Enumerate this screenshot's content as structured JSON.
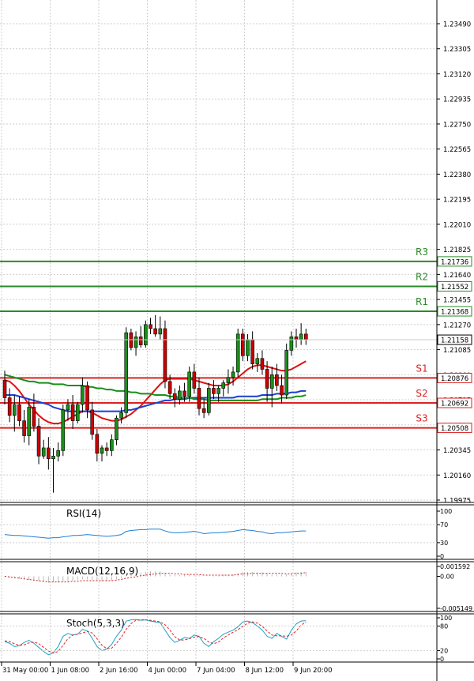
{
  "chart_data": [
    {
      "type": "candlestick",
      "panel": "price",
      "y_ticks": [
        "1.23490",
        "1.23305",
        "1.23120",
        "1.22935",
        "1.22750",
        "1.22565",
        "1.22380",
        "1.22195",
        "1.22010",
        "1.21825",
        "1.21640",
        "1.21455",
        "1.21270",
        "1.21085",
        "1.20900",
        "1.20715",
        "1.20530",
        "1.20345",
        "1.20160",
        "1.19975"
      ],
      "ylim": [
        1.19975,
        1.2349
      ],
      "x_ticks": [
        "31 May 00:00",
        "1 Jun 08:00",
        "2 Jun 16:00",
        "4 Jun 00:00",
        "7 Jun 04:00",
        "8 Jun 12:00",
        "9 Jun 20:00"
      ],
      "x_tick_index": [
        0,
        10,
        20,
        30,
        40,
        50,
        60
      ],
      "bull_color": "#1a8f1a",
      "bear_color": "#cc0000",
      "candles": [
        {
          "o": 1.2086,
          "h": 1.2093,
          "l": 1.2068,
          "c": 1.2073
        },
        {
          "o": 1.2073,
          "h": 1.208,
          "l": 1.2055,
          "c": 1.206
        },
        {
          "o": 1.206,
          "h": 1.2075,
          "l": 1.2048,
          "c": 1.2068
        },
        {
          "o": 1.2068,
          "h": 1.2074,
          "l": 1.2052,
          "c": 1.2056
        },
        {
          "o": 1.2056,
          "h": 1.2064,
          "l": 1.204,
          "c": 1.2045
        },
        {
          "o": 1.2045,
          "h": 1.2072,
          "l": 1.2038,
          "c": 1.2066
        },
        {
          "o": 1.2066,
          "h": 1.2076,
          "l": 1.2048,
          "c": 1.2052
        },
        {
          "o": 1.2052,
          "h": 1.2058,
          "l": 1.2024,
          "c": 1.203
        },
        {
          "o": 1.203,
          "h": 1.2042,
          "l": 1.2028,
          "c": 1.2036
        },
        {
          "o": 1.2036,
          "h": 1.2044,
          "l": 1.202,
          "c": 1.2028
        },
        {
          "o": 1.2028,
          "h": 1.2036,
          "l": 1.2003,
          "c": 1.203
        },
        {
          "o": 1.203,
          "h": 1.204,
          "l": 1.2026,
          "c": 1.2034
        },
        {
          "o": 1.2034,
          "h": 1.2068,
          "l": 1.203,
          "c": 1.2064
        },
        {
          "o": 1.2064,
          "h": 1.2072,
          "l": 1.2056,
          "c": 1.2068
        },
        {
          "o": 1.2068,
          "h": 1.2075,
          "l": 1.205,
          "c": 1.2056
        },
        {
          "o": 1.2056,
          "h": 1.207,
          "l": 1.2054,
          "c": 1.2068
        },
        {
          "o": 1.2068,
          "h": 1.2088,
          "l": 1.2062,
          "c": 1.2082
        },
        {
          "o": 1.2082,
          "h": 1.2085,
          "l": 1.2058,
          "c": 1.2064
        },
        {
          "o": 1.2064,
          "h": 1.207,
          "l": 1.2042,
          "c": 1.2046
        },
        {
          "o": 1.2046,
          "h": 1.205,
          "l": 1.2026,
          "c": 1.2032
        },
        {
          "o": 1.2032,
          "h": 1.2038,
          "l": 1.2026,
          "c": 1.2036
        },
        {
          "o": 1.2036,
          "h": 1.204,
          "l": 1.203,
          "c": 1.2034
        },
        {
          "o": 1.2034,
          "h": 1.2046,
          "l": 1.203,
          "c": 1.2042
        },
        {
          "o": 1.2042,
          "h": 1.206,
          "l": 1.2038,
          "c": 1.2058
        },
        {
          "o": 1.2058,
          "h": 1.2066,
          "l": 1.2054,
          "c": 1.2062
        },
        {
          "o": 1.2062,
          "h": 1.2125,
          "l": 1.2058,
          "c": 1.2121
        },
        {
          "o": 1.2121,
          "h": 1.2124,
          "l": 1.2108,
          "c": 1.211
        },
        {
          "o": 1.211,
          "h": 1.2122,
          "l": 1.2104,
          "c": 1.2118
        },
        {
          "o": 1.2118,
          "h": 1.2126,
          "l": 1.211,
          "c": 1.2112
        },
        {
          "o": 1.2112,
          "h": 1.213,
          "l": 1.211,
          "c": 1.2127
        },
        {
          "o": 1.2127,
          "h": 1.2132,
          "l": 1.212,
          "c": 1.2124
        },
        {
          "o": 1.2124,
          "h": 1.2134,
          "l": 1.2118,
          "c": 1.212
        },
        {
          "o": 1.212,
          "h": 1.2133,
          "l": 1.2116,
          "c": 1.2124
        },
        {
          "o": 1.2124,
          "h": 1.213,
          "l": 1.208,
          "c": 1.2085
        },
        {
          "o": 1.2085,
          "h": 1.209,
          "l": 1.2072,
          "c": 1.2076
        },
        {
          "o": 1.2076,
          "h": 1.208,
          "l": 1.2066,
          "c": 1.2072
        },
        {
          "o": 1.2072,
          "h": 1.2082,
          "l": 1.2068,
          "c": 1.2078
        },
        {
          "o": 1.2078,
          "h": 1.2084,
          "l": 1.207,
          "c": 1.2074
        },
        {
          "o": 1.2074,
          "h": 1.2096,
          "l": 1.207,
          "c": 1.2092
        },
        {
          "o": 1.2092,
          "h": 1.2098,
          "l": 1.2076,
          "c": 1.208
        },
        {
          "o": 1.208,
          "h": 1.2088,
          "l": 1.206,
          "c": 1.2065
        },
        {
          "o": 1.2065,
          "h": 1.2072,
          "l": 1.2058,
          "c": 1.2062
        },
        {
          "o": 1.2062,
          "h": 1.2084,
          "l": 1.206,
          "c": 1.208
        },
        {
          "o": 1.208,
          "h": 1.2086,
          "l": 1.2072,
          "c": 1.2076
        },
        {
          "o": 1.2076,
          "h": 1.2082,
          "l": 1.207,
          "c": 1.208
        },
        {
          "o": 1.208,
          "h": 1.2086,
          "l": 1.2074,
          "c": 1.2084
        },
        {
          "o": 1.2084,
          "h": 1.2094,
          "l": 1.2076,
          "c": 1.2088
        },
        {
          "o": 1.2088,
          "h": 1.2096,
          "l": 1.2082,
          "c": 1.2092
        },
        {
          "o": 1.2092,
          "h": 1.2124,
          "l": 1.2088,
          "c": 1.212
        },
        {
          "o": 1.212,
          "h": 1.2124,
          "l": 1.21,
          "c": 1.2104
        },
        {
          "o": 1.2104,
          "h": 1.212,
          "l": 1.21,
          "c": 1.2116
        },
        {
          "o": 1.2116,
          "h": 1.2122,
          "l": 1.2094,
          "c": 1.2098
        },
        {
          "o": 1.2098,
          "h": 1.2106,
          "l": 1.2092,
          "c": 1.2102
        },
        {
          "o": 1.2102,
          "h": 1.2108,
          "l": 1.209,
          "c": 1.2094
        },
        {
          "o": 1.2094,
          "h": 1.21,
          "l": 1.207,
          "c": 1.208
        },
        {
          "o": 1.208,
          "h": 1.2096,
          "l": 1.2066,
          "c": 1.209
        },
        {
          "o": 1.209,
          "h": 1.2098,
          "l": 1.2078,
          "c": 1.2082
        },
        {
          "o": 1.2082,
          "h": 1.209,
          "l": 1.2069,
          "c": 1.2075
        },
        {
          "o": 1.2075,
          "h": 1.2113,
          "l": 1.2072,
          "c": 1.2108
        },
        {
          "o": 1.2108,
          "h": 1.2122,
          "l": 1.2104,
          "c": 1.2118
        },
        {
          "o": 1.2118,
          "h": 1.2124,
          "l": 1.211,
          "c": 1.2116
        },
        {
          "o": 1.2116,
          "h": 1.2128,
          "l": 1.2112,
          "c": 1.212
        },
        {
          "o": 1.212,
          "h": 1.2124,
          "l": 1.2112,
          "c": 1.2116
        }
      ],
      "moving_averages": [
        {
          "color": "#e01010",
          "values": [
            1.2086,
            1.2085,
            1.2082,
            1.2078,
            1.2073,
            1.2068,
            1.2064,
            1.206,
            1.2057,
            1.2055,
            1.2054,
            1.2054,
            1.2055,
            1.2057,
            1.2059,
            1.2061,
            1.2063,
            1.2063,
            1.2062,
            1.206,
            1.2058,
            1.2057,
            1.2056,
            1.2056,
            1.2057,
            1.2059,
            1.2061,
            1.2064,
            1.2067,
            1.2071,
            1.2075,
            1.2079,
            1.2083,
            1.2086,
            1.2087,
            1.2087,
            1.2087,
            1.2087,
            1.2087,
            1.2086,
            1.2085,
            1.2084,
            1.2083,
            1.2082,
            1.2082,
            1.2082,
            1.2083,
            1.2085,
            1.2088,
            1.2091,
            1.2094,
            1.2096,
            1.2097,
            1.2097,
            1.2096,
            1.2095,
            1.2094,
            1.2093,
            1.2093,
            1.2094,
            1.2096,
            1.2098,
            1.21
          ]
        },
        {
          "color": "#1c3fd1",
          "values": [
            1.2075,
            1.2075,
            1.2075,
            1.2074,
            1.2073,
            1.2072,
            1.2071,
            1.207,
            1.2069,
            1.2068,
            1.2066,
            1.2065,
            1.2064,
            1.2063,
            1.2063,
            1.2063,
            1.2063,
            1.2063,
            1.2063,
            1.2063,
            1.2063,
            1.2063,
            1.2063,
            1.2063,
            1.2063,
            1.2064,
            1.2064,
            1.2065,
            1.2066,
            1.2067,
            1.2068,
            1.2069,
            1.207,
            1.2071,
            1.2071,
            1.2072,
            1.2072,
            1.2072,
            1.2073,
            1.2073,
            1.2073,
            1.2073,
            1.2073,
            1.2073,
            1.2073,
            1.2073,
            1.2073,
            1.2073,
            1.2074,
            1.2074,
            1.2074,
            1.2074,
            1.2074,
            1.2075,
            1.2075,
            1.2075,
            1.2076,
            1.2076,
            1.2076,
            1.2077,
            1.2077,
            1.2078,
            1.2078
          ]
        },
        {
          "color": "#1a8f1a",
          "values": [
            1.209,
            1.2089,
            1.2088,
            1.2087,
            1.2086,
            1.2085,
            1.2085,
            1.2084,
            1.2084,
            1.2084,
            1.2083,
            1.2083,
            1.2083,
            1.2082,
            1.2082,
            1.2082,
            1.2082,
            1.2081,
            1.2081,
            1.208,
            1.208,
            1.2079,
            1.2079,
            1.2078,
            1.2078,
            1.2078,
            1.2077,
            1.2077,
            1.2076,
            1.2076,
            1.2076,
            1.2075,
            1.2075,
            1.2075,
            1.2074,
            1.2074,
            1.2073,
            1.2073,
            1.2073,
            1.2072,
            1.2072,
            1.2072,
            1.2071,
            1.2071,
            1.2071,
            1.2071,
            1.2071,
            1.2071,
            1.2071,
            1.2071,
            1.2071,
            1.2071,
            1.2071,
            1.2072,
            1.2072,
            1.2072,
            1.2072,
            1.2073,
            1.2073,
            1.2073,
            1.2074,
            1.2074,
            1.2075
          ]
        }
      ],
      "levels": [
        {
          "label": "R3",
          "value": "1.21736",
          "color": "#2a8a2a"
        },
        {
          "label": "R2",
          "value": "1.21552",
          "color": "#2a8a2a"
        },
        {
          "label": "R1",
          "value": "1.21368",
          "color": "#2a8a2a"
        },
        {
          "label": "S1",
          "value": "1.20876",
          "color": "#dd2222"
        },
        {
          "label": "S2",
          "value": "1.20692",
          "color": "#dd2222"
        },
        {
          "label": "S3",
          "value": "1.20508",
          "color": "#dd2222"
        }
      ],
      "current_price": "1.21158"
    },
    {
      "type": "line",
      "panel": "rsi",
      "title": "RSI(14)",
      "y_ticks": [
        "100",
        "70",
        "30",
        "0"
      ],
      "ylim": [
        0,
        100
      ],
      "color": "#1f7fd6",
      "values": [
        48,
        47,
        46,
        46,
        45,
        44,
        43,
        42,
        41,
        40,
        41,
        41,
        43,
        44,
        46,
        46,
        47,
        48,
        47,
        46,
        45,
        44,
        45,
        46,
        48,
        55,
        57,
        58,
        59,
        59,
        60,
        60,
        60,
        56,
        53,
        52,
        52,
        53,
        54,
        55,
        53,
        50,
        51,
        52,
        52,
        53,
        54,
        55,
        57,
        59,
        58,
        57,
        55,
        54,
        51,
        50,
        52,
        52,
        53,
        54,
        55,
        56,
        56
      ]
    },
    {
      "type": "line",
      "panel": "macd",
      "title": "MACD(12,16,9)",
      "y_ticks": [
        "0.001592",
        "0.00",
        "-0.005149"
      ],
      "ylim": [
        -0.005149,
        0.001592
      ],
      "histogram_color": "#b8b8b8",
      "signal_color": "#cc2222",
      "histogram": [
        -0.0001,
        -0.0002,
        -0.0003,
        -0.0004,
        -0.0005,
        -0.0006,
        -0.0007,
        -0.0008,
        -0.0009,
        -0.001,
        -0.001,
        -0.001,
        -0.0009,
        -0.0008,
        -0.0007,
        -0.0006,
        -0.0005,
        -0.0005,
        -0.0006,
        -0.0007,
        -0.0008,
        -0.0008,
        -0.0007,
        -0.0005,
        -0.0003,
        0.0002,
        0.0004,
        0.0005,
        0.0006,
        0.0007,
        0.0008,
        0.0008,
        0.0008,
        0.0005,
        0.0003,
        0.0002,
        0.0002,
        0.0002,
        0.0003,
        0.0003,
        0.0002,
        0.0,
        0.0,
        0.0001,
        0.0001,
        0.0002,
        0.0002,
        0.0003,
        0.0005,
        0.0007,
        0.0007,
        0.0007,
        0.0006,
        0.0006,
        0.0004,
        0.0003,
        0.0004,
        0.0003,
        0.0003,
        0.0005,
        0.0006,
        0.0007,
        0.0007
      ],
      "signal": [
        0.0,
        -0.0001,
        -0.0002,
        -0.0003,
        -0.0004,
        -0.0005,
        -0.0006,
        -0.0007,
        -0.0008,
        -0.0009,
        -0.0009,
        -0.0009,
        -0.0009,
        -0.0009,
        -0.0008,
        -0.0008,
        -0.0007,
        -0.0007,
        -0.0007,
        -0.0007,
        -0.0007,
        -0.0007,
        -0.0007,
        -0.0006,
        -0.0005,
        -0.0003,
        -0.0002,
        -0.0001,
        0.0001,
        0.0002,
        0.0003,
        0.0004,
        0.0005,
        0.0005,
        0.0005,
        0.0004,
        0.0004,
        0.0003,
        0.0003,
        0.0003,
        0.0003,
        0.0002,
        0.0002,
        0.0002,
        0.0002,
        0.0002,
        0.0002,
        0.0002,
        0.0003,
        0.0004,
        0.0004,
        0.0005,
        0.0005,
        0.0005,
        0.0005,
        0.0005,
        0.0005,
        0.0005,
        0.0004,
        0.0004,
        0.0005,
        0.0005,
        0.0006
      ]
    },
    {
      "type": "line",
      "panel": "stoch",
      "title": "Stoch(5,3,3)",
      "y_ticks": [
        "100",
        "80",
        "20",
        "0"
      ],
      "ylim": [
        0,
        100
      ],
      "k_color": "#1fa0c8",
      "d_color": "#dd2222",
      "k": [
        42,
        38,
        30,
        32,
        40,
        45,
        38,
        28,
        18,
        10,
        15,
        30,
        55,
        62,
        58,
        60,
        72,
        68,
        50,
        30,
        20,
        24,
        35,
        55,
        70,
        92,
        95,
        96,
        94,
        95,
        92,
        90,
        88,
        70,
        52,
        40,
        45,
        52,
        50,
        58,
        55,
        38,
        30,
        42,
        50,
        60,
        65,
        70,
        78,
        90,
        92,
        88,
        80,
        70,
        55,
        50,
        62,
        55,
        48,
        70,
        85,
        92,
        93
      ],
      "d": [
        44,
        42,
        37,
        33,
        34,
        39,
        41,
        37,
        28,
        19,
        14,
        18,
        33,
        49,
        58,
        60,
        63,
        67,
        63,
        49,
        33,
        25,
        26,
        38,
        53,
        72,
        86,
        94,
        95,
        95,
        94,
        92,
        90,
        83,
        70,
        54,
        46,
        46,
        49,
        53,
        54,
        50,
        41,
        37,
        41,
        51,
        58,
        65,
        71,
        79,
        87,
        90,
        87,
        79,
        68,
        58,
        56,
        56,
        55,
        58,
        68,
        82,
        90
      ]
    }
  ]
}
